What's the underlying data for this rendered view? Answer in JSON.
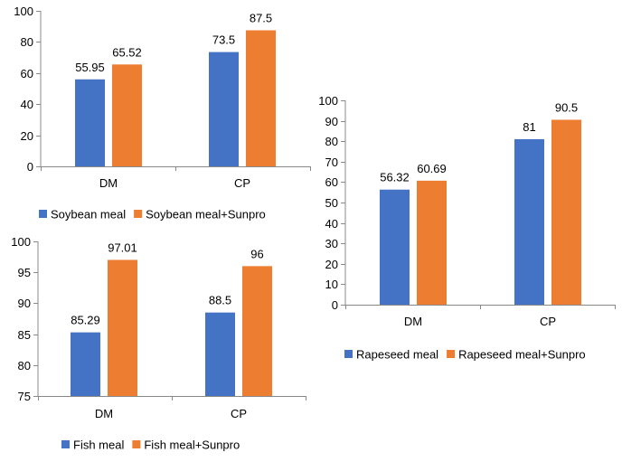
{
  "colors": {
    "series_1": "#4472C4",
    "series_2": "#ED7D31"
  },
  "chart_data": [
    {
      "type": "bar",
      "categories": [
        "DM",
        "CP"
      ],
      "series": [
        {
          "name": "Soybean meal",
          "values": [
            55.95,
            73.5
          ],
          "labels": [
            "55.95",
            "73.5"
          ]
        },
        {
          "name": "Soybean meal+Sunpro",
          "values": [
            65.52,
            87.5
          ],
          "labels": [
            "65.52",
            "87.5"
          ]
        }
      ],
      "ylim": [
        0,
        100
      ],
      "yticks": [
        0,
        20,
        40,
        60,
        80,
        100
      ],
      "legend": "bottom",
      "grid": false
    },
    {
      "type": "bar",
      "categories": [
        "DM",
        "CP"
      ],
      "series": [
        {
          "name": "Fish meal",
          "values": [
            85.29,
            88.5
          ],
          "labels": [
            "85.29",
            "88.5"
          ]
        },
        {
          "name": "Fish meal+Sunpro",
          "values": [
            97.01,
            96
          ],
          "labels": [
            "97.01",
            "96"
          ]
        }
      ],
      "ylim": [
        75,
        100
      ],
      "yticks": [
        75,
        80,
        85,
        90,
        95,
        100
      ],
      "legend": "bottom",
      "grid": false
    },
    {
      "type": "bar",
      "categories": [
        "DM",
        "CP"
      ],
      "series": [
        {
          "name": "Rapeseed meal",
          "values": [
            56.32,
            81
          ],
          "labels": [
            "56.32",
            "81"
          ]
        },
        {
          "name": "Rapeseed meal+Sunpro",
          "values": [
            60.69,
            90.5
          ],
          "labels": [
            "60.69",
            "90.5"
          ]
        }
      ],
      "ylim": [
        0,
        100
      ],
      "yticks": [
        0,
        10,
        20,
        30,
        40,
        50,
        60,
        70,
        80,
        90,
        100
      ],
      "legend": "bottom",
      "grid": false
    }
  ]
}
